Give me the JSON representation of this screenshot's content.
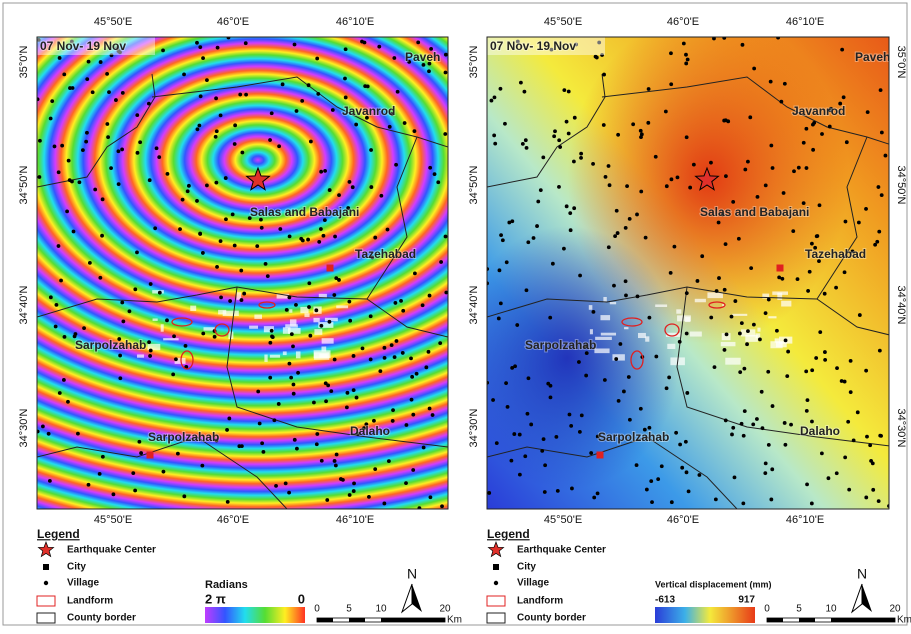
{
  "panels": [
    {
      "date_label": "07 Nov- 19 Nov",
      "lon_labels": [
        "45°50'E",
        "46°0'E",
        "46°10'E"
      ],
      "lat_labels": [
        "35°0'N",
        "34°50'N",
        "34°40'N",
        "34°30'N"
      ],
      "places": [
        "Paveh",
        "Javanrod",
        "Salas and Babajani",
        "Tazehabad",
        "Sarpolzahab",
        "Sarpolzahab",
        "Dalaho"
      ],
      "legend": {
        "title": "Legend",
        "items": [
          "Earthquake Center",
          "City",
          "Village",
          "Landform",
          "County border"
        ]
      },
      "colorbar": {
        "title": "Radians",
        "min_label": "2 π",
        "max_label": "0"
      },
      "scale": {
        "ticks": [
          "0",
          "5",
          "10",
          "20"
        ],
        "unit": "Km"
      },
      "north": "N"
    },
    {
      "date_label": "07 Nov- 19 Nov",
      "lon_labels": [
        "45°50'E",
        "46°0'E",
        "46°10'E"
      ],
      "lat_labels": [
        "35°0'N",
        "34°50'N",
        "34°40'N",
        "34°30'N"
      ],
      "places": [
        "Paveh",
        "Javanrod",
        "Salas and Babajani",
        "Tazehabad",
        "Sarpolzahab",
        "Sarpolzahab",
        "Dalaho"
      ],
      "legend": {
        "title": "Legend",
        "items": [
          "Earthquake Center",
          "City",
          "Village",
          "Landform",
          "County border"
        ]
      },
      "colorbar": {
        "title": "Vertical displacement (mm)",
        "min_label": "-613",
        "max_label": "917"
      },
      "scale": {
        "ticks": [
          "0",
          "5",
          "10",
          "20"
        ],
        "unit": "Km"
      },
      "north": "N"
    }
  ]
}
